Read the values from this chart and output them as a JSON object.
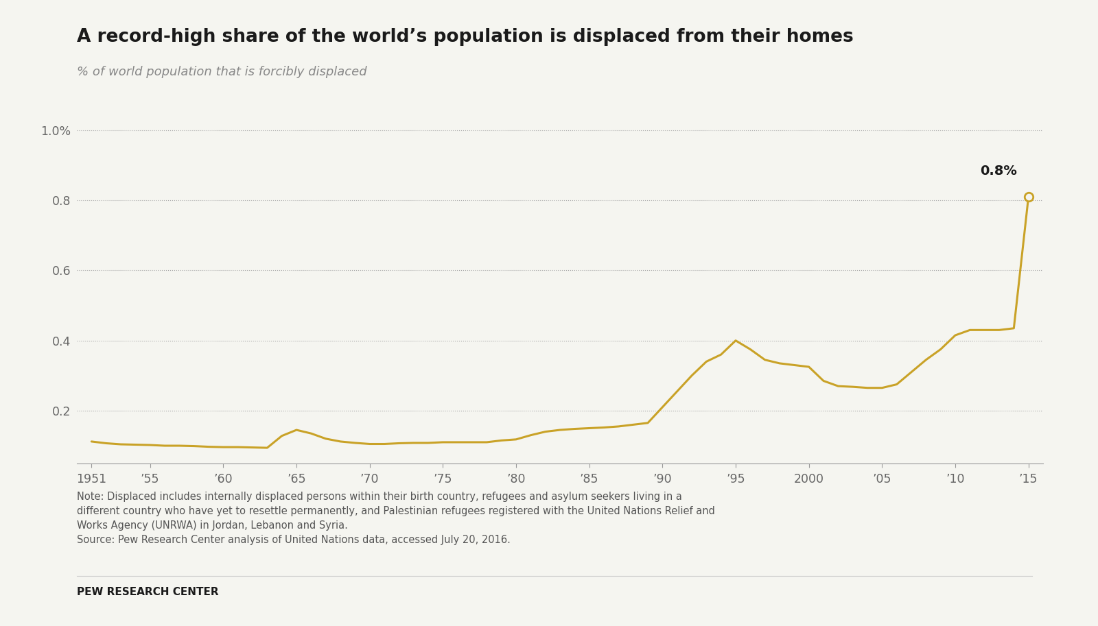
{
  "title": "A record-high share of the world’s population is displaced from their homes",
  "subtitle": "% of world population that is forcibly displaced",
  "line_color": "#C9A227",
  "background_color": "#f5f5f0",
  "note_text": "Note: Displaced includes internally displaced persons within their birth country, refugees and asylum seekers living in a\ndifferent country who have yet to resettle permanently, and Palestinian refugees registered with the United Nations Relief and\nWorks Agency (UNRWA) in Jordan, Lebanon and Syria.\nSource: Pew Research Center analysis of United Nations data, accessed July 20, 2016.",
  "source_label": "PEW RESEARCH CENTER",
  "annotation_text": "0.8%",
  "years": [
    1951,
    1952,
    1953,
    1954,
    1955,
    1956,
    1957,
    1958,
    1959,
    1960,
    1961,
    1962,
    1963,
    1964,
    1965,
    1966,
    1967,
    1968,
    1969,
    1970,
    1971,
    1972,
    1973,
    1974,
    1975,
    1976,
    1977,
    1978,
    1979,
    1980,
    1981,
    1982,
    1983,
    1984,
    1985,
    1986,
    1987,
    1988,
    1989,
    1990,
    1991,
    1992,
    1993,
    1994,
    1995,
    1996,
    1997,
    1998,
    1999,
    2000,
    2001,
    2002,
    2003,
    2004,
    2005,
    2006,
    2007,
    2008,
    2009,
    2010,
    2011,
    2012,
    2013,
    2014,
    2015
  ],
  "values": [
    0.112,
    0.107,
    0.104,
    0.103,
    0.102,
    0.1,
    0.1,
    0.099,
    0.097,
    0.096,
    0.096,
    0.095,
    0.094,
    0.128,
    0.145,
    0.135,
    0.12,
    0.112,
    0.108,
    0.105,
    0.105,
    0.107,
    0.108,
    0.108,
    0.11,
    0.11,
    0.11,
    0.11,
    0.115,
    0.118,
    0.13,
    0.14,
    0.145,
    0.148,
    0.15,
    0.152,
    0.155,
    0.16,
    0.165,
    0.21,
    0.255,
    0.3,
    0.34,
    0.36,
    0.4,
    0.375,
    0.345,
    0.335,
    0.33,
    0.325,
    0.285,
    0.27,
    0.268,
    0.265,
    0.265,
    0.275,
    0.31,
    0.345,
    0.375,
    0.415,
    0.43,
    0.43,
    0.43,
    0.435,
    0.81
  ],
  "yticks": [
    0.2,
    0.4,
    0.6,
    0.8,
    1.0
  ],
  "ytick_labels": [
    "0.2",
    "0.4",
    "0.6",
    "0.8",
    "1.0%"
  ],
  "xticks": [
    1951,
    1955,
    1960,
    1965,
    1970,
    1975,
    1980,
    1985,
    1990,
    1995,
    2000,
    2005,
    2010,
    2015
  ],
  "xtick_labels": [
    "1951",
    "’55",
    "’60",
    "’65",
    "’70",
    "’75",
    "’80",
    "’85",
    "’90",
    "’95",
    "2000",
    "’05",
    "’10",
    "’15"
  ],
  "ylim": [
    0.05,
    1.05
  ],
  "xlim": [
    1950,
    2016
  ]
}
